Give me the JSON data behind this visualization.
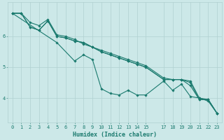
{
  "xlabel": "Humidex (Indice chaleur)",
  "ylabel": "",
  "xlim": [
    -0.5,
    23.5
  ],
  "ylim": [
    3.2,
    7.1
  ],
  "bg_color": "#cce8e8",
  "grid_color": "#b0d0d0",
  "line_color": "#1a7a6e",
  "lines": [
    {
      "x": [
        0,
        1,
        2,
        3,
        4,
        5,
        6,
        7,
        8,
        9,
        10,
        11,
        12,
        13,
        14,
        15,
        17,
        18,
        19,
        20,
        21,
        22,
        23
      ],
      "y": [
        6.75,
        6.75,
        6.45,
        6.35,
        6.55,
        6.05,
        6.0,
        5.9,
        5.75,
        5.65,
        5.55,
        5.45,
        5.35,
        5.25,
        5.15,
        5.05,
        4.65,
        4.6,
        4.6,
        4.55,
        4.0,
        3.95,
        3.5
      ]
    },
    {
      "x": [
        0,
        1,
        2,
        3,
        4,
        5,
        6,
        7,
        8,
        9,
        10,
        11,
        12,
        13,
        14,
        15,
        17,
        18,
        19,
        20,
        21,
        22,
        23
      ],
      "y": [
        6.75,
        6.75,
        6.3,
        6.2,
        6.5,
        6.0,
        5.95,
        5.85,
        5.8,
        5.65,
        5.5,
        5.4,
        5.3,
        5.2,
        5.1,
        5.0,
        4.6,
        4.6,
        4.6,
        4.5,
        3.95,
        3.95,
        3.5
      ]
    },
    {
      "x": [
        0,
        5,
        7,
        8,
        9,
        10,
        11,
        12,
        13,
        14,
        15,
        17,
        18,
        19,
        20,
        21,
        22,
        23
      ],
      "y": [
        6.75,
        5.8,
        5.2,
        5.4,
        5.25,
        4.3,
        4.15,
        4.1,
        4.25,
        4.1,
        4.1,
        4.55,
        4.25,
        4.45,
        4.05,
        4.0,
        3.9,
        3.5
      ]
    },
    {
      "x": [
        0,
        1,
        2,
        3,
        4,
        5,
        6,
        7,
        8,
        9,
        10,
        11,
        12,
        13,
        14,
        15,
        17,
        18,
        19,
        20,
        21,
        22,
        23
      ],
      "y": [
        6.75,
        6.75,
        6.3,
        6.2,
        6.5,
        6.0,
        5.95,
        5.85,
        5.8,
        5.65,
        5.5,
        5.4,
        5.3,
        5.2,
        5.1,
        5.0,
        4.6,
        4.6,
        4.6,
        4.4,
        3.95,
        3.95,
        3.5
      ]
    }
  ],
  "yticks": [
    4,
    5,
    6
  ],
  "xticks": [
    0,
    1,
    2,
    3,
    4,
    5,
    6,
    7,
    8,
    9,
    10,
    11,
    12,
    13,
    14,
    15,
    17,
    18,
    19,
    20,
    21,
    22,
    23
  ],
  "xtick_labels": [
    "0",
    "1",
    "2",
    "3",
    "4",
    "5",
    "6",
    "7",
    "8",
    "9",
    "10",
    "11",
    "12",
    "13",
    "14",
    "15",
    "17",
    "18",
    "19",
    "20",
    "21",
    "22",
    "23"
  ],
  "marker": "D",
  "marker_size": 1.8,
  "lw": 0.8,
  "tick_fontsize": 5.0,
  "label_fontsize": 6.0
}
